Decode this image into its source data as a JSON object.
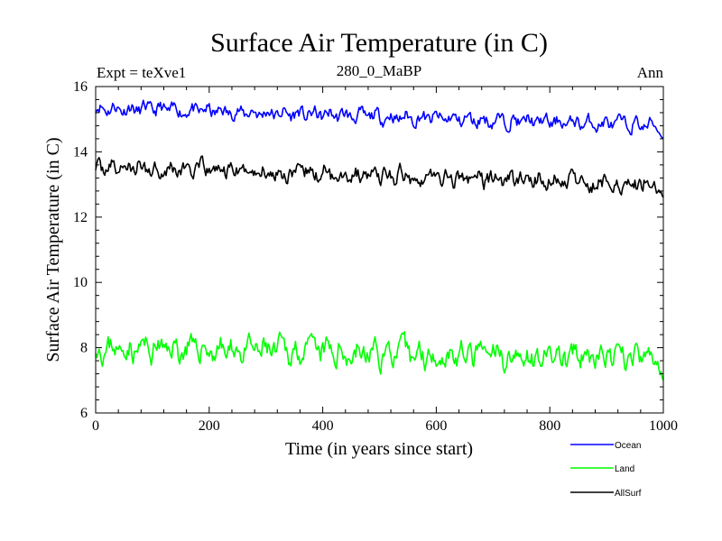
{
  "chart_data": {
    "type": "line",
    "title": "Surface Air Temperature (in C)",
    "subtitle": "280_0_MaBP",
    "left_label": "Expt = teXve1",
    "right_label": "Ann",
    "xlabel": "Time (in years since start)",
    "ylabel": "Surface Air Temperature (in C)",
    "xlim": [
      0,
      1000
    ],
    "ylim": [
      6,
      16
    ],
    "xticks": [
      0,
      200,
      400,
      600,
      800,
      1000
    ],
    "yticks": [
      6,
      8,
      10,
      12,
      14,
      16
    ],
    "grid": false,
    "legend_position": "bottom-right",
    "series": [
      {
        "name": "Ocean",
        "color": "#0000ff",
        "mean_start": 15.35,
        "mean_end": 14.8,
        "amplitude": 0.17,
        "end_value": 14.4,
        "seed": 11
      },
      {
        "name": "Land",
        "color": "#00ff00",
        "mean_start": 8.0,
        "mean_end": 7.65,
        "amplitude": 0.3,
        "end_value": 7.0,
        "seed": 23
      },
      {
        "name": "AllSurf",
        "color": "#000000",
        "mean_start": 13.55,
        "mean_end": 13.0,
        "amplitude": 0.2,
        "end_value": 12.6,
        "seed": 37
      }
    ]
  }
}
